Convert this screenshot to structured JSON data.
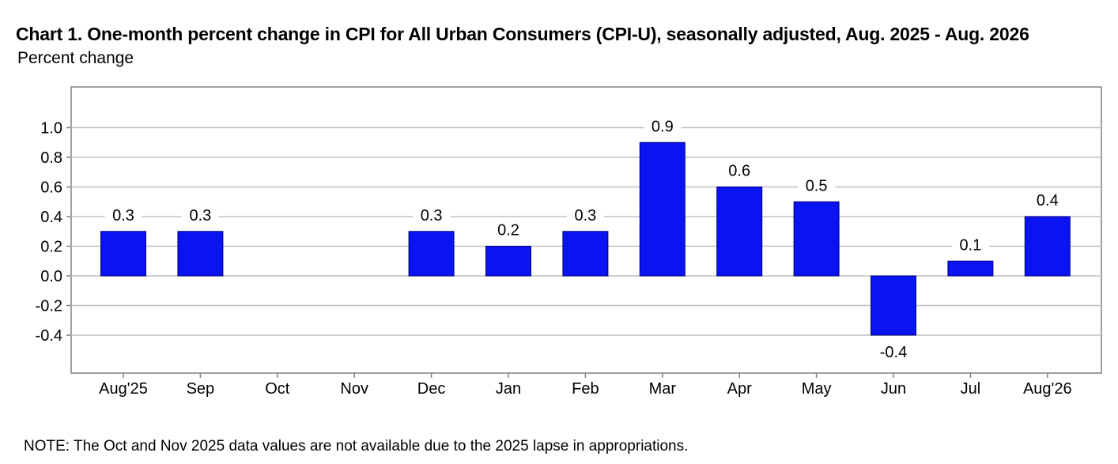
{
  "header": {
    "title": "Chart 1. One-month percent change in CPI for All Urban Consumers (CPI-U), seasonally adjusted, Aug. 2025 - Aug. 2026",
    "subtitle": "Percent change"
  },
  "note": "NOTE: The Oct and Nov 2025 data values are not available due to the 2025 lapse in appropriations.",
  "colors": {
    "bar": "#0a14f0",
    "grid": "#c0c0c0",
    "frame": "#808080"
  },
  "chart_data": {
    "type": "bar",
    "title": "Chart 1. One-month percent change in CPI for All Urban Consumers (CPI-U), seasonally adjusted, Aug. 2025 - Aug. 2026",
    "ylabel": "Percent change",
    "categories": [
      "Aug'25",
      "Sep",
      "Oct",
      "Nov",
      "Dec",
      "Jan",
      "Feb",
      "Mar",
      "Apr",
      "May",
      "Jun",
      "Jul",
      "Aug'26"
    ],
    "values": [
      0.3,
      0.3,
      null,
      null,
      0.3,
      0.2,
      0.3,
      0.9,
      0.6,
      0.5,
      -0.4,
      0.1,
      0.4
    ],
    "labels": [
      "0.3",
      "0.3",
      "",
      "",
      "0.3",
      "0.2",
      "0.3",
      "0.9",
      "0.6",
      "0.5",
      "-0.4",
      "0.1",
      "0.4"
    ],
    "yticks": [
      1.0,
      0.8,
      0.6,
      0.4,
      0.2,
      0.0,
      -0.2,
      -0.4
    ],
    "ytick_labels": [
      "1.0",
      "0.8",
      "0.6",
      "0.4",
      "0.2",
      "0.0",
      "-0.2",
      "-0.4"
    ],
    "ylim": [
      -0.6,
      1.25
    ],
    "grid": true
  }
}
